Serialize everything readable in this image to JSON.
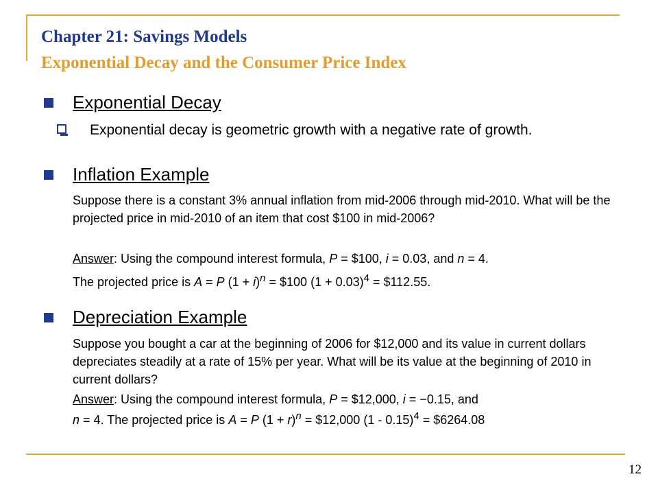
{
  "slide": {
    "title": "Chapter 21:  Savings Models",
    "subtitle": "Exponential Decay and the Consumer Price Index",
    "page_number": "12"
  },
  "colors": {
    "accent": "#E0A93A",
    "title": "#1F3A8F",
    "subtitle": "#E19E2E",
    "bullet": "#1F3A8F"
  },
  "sections": {
    "decay": {
      "heading": "Exponential Decay",
      "sub_bullet": "Exponential decay is geometric growth with a negative rate of growth."
    },
    "inflation": {
      "heading": "Inflation Example",
      "question": "Suppose there is a constant 3% annual inflation from mid-2006 through mid-2010.  What will be the projected price in mid-2010 of an item that cost $100 in mid-2006?",
      "answer_label": "Answer",
      "answer_text": ": Using the compound interest formula, ",
      "vars": {
        "P": "P",
        "P_val": " = $100, ",
        "i": "i",
        "i_val": " = 0.03, and ",
        "n": "n",
        "n_val": " = 4."
      },
      "result": {
        "prefix": "The projected price is ",
        "A": "A",
        "eq1": " = ",
        "P": "P",
        "open": " (1 + ",
        "i": "i",
        "close": ")",
        "exp_n": "n",
        "mid": "  =  $100 (1 + 0.03)",
        "exp4": "4",
        "end": "  =  $112.55."
      }
    },
    "depreciation": {
      "heading": "Depreciation Example",
      "question": "Suppose you bought a car at the beginning of 2006 for $12,000 and its value in current dollars depreciates steadily at a rate of 15% per year.  What will be its value at the beginning of 2010 in current dollars?",
      "answer_label": "Answer",
      "answer_text": ": Using the compound interest formula, ",
      "vars": {
        "P": "P",
        "P_val": " = $12,000, ",
        "i": "i",
        "i_val": " = −0.15, and"
      },
      "result": {
        "n": "n",
        "n_val": " = 4. The projected price is ",
        "A": "A",
        "eq1": " = ",
        "P": "P",
        "open": " (1 + ",
        "r": "r",
        "close": ")",
        "exp_n": "n",
        "mid": "  =  $12,000 (1 - 0.15)",
        "exp4": "4",
        "end": "  =  $6264.08"
      }
    }
  }
}
